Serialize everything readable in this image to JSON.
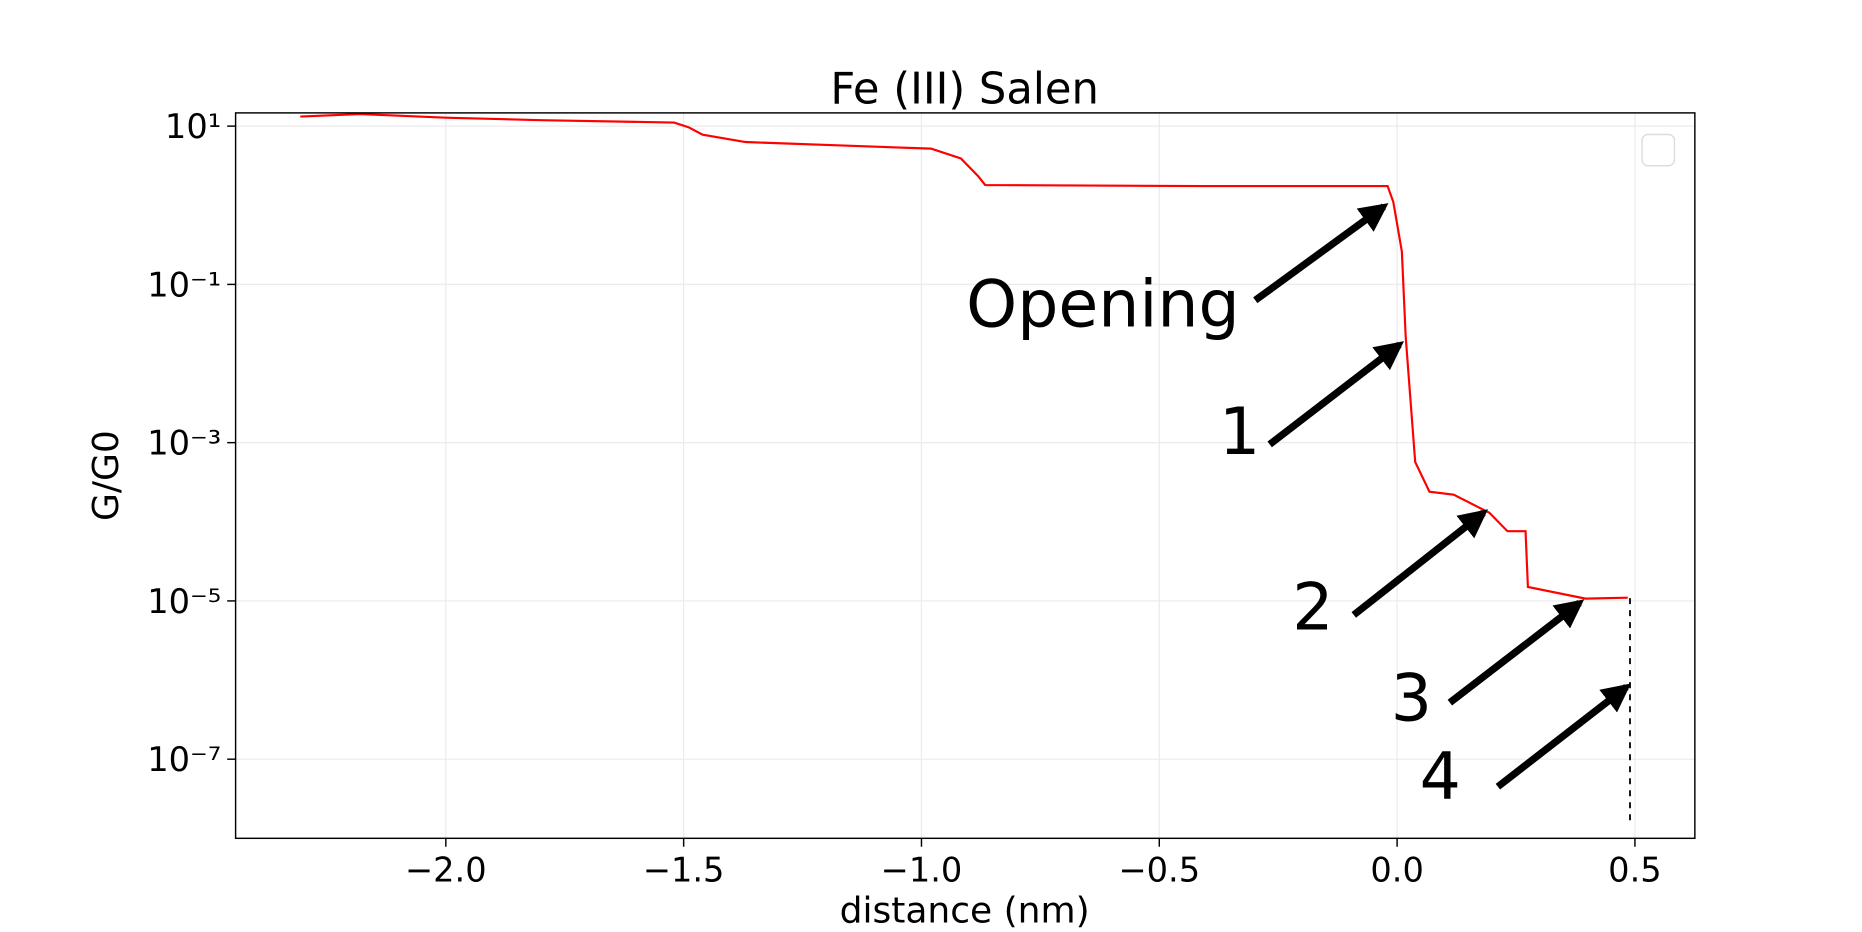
{
  "chart_data": {
    "type": "line",
    "title": "Fe (III) Salen",
    "x_label": "distance (nm)",
    "y_label": "G/G0",
    "log_y": true,
    "grid": true,
    "xlim": [
      -2.442,
      0.626
    ],
    "ylim": [
      1e-08,
      14.7
    ],
    "xticks": [
      {
        "value": -2,
        "label": "−2.0"
      },
      {
        "value": -1.5,
        "label": "−1.5"
      },
      {
        "value": -1,
        "label": "−1.0"
      },
      {
        "value": -0.5,
        "label": "−0.5"
      },
      {
        "value": 0,
        "label": "0.0"
      },
      {
        "value": 0.5,
        "label": "0.5"
      }
    ],
    "yticks": [
      {
        "value": 10,
        "label": "10¹"
      },
      {
        "value": 0.1,
        "label": "10⁻¹"
      },
      {
        "value": 0.001,
        "label": "10⁻³"
      },
      {
        "value": 1e-05,
        "label": "10⁻⁵"
      },
      {
        "value": 1e-07,
        "label": "10⁻⁷"
      }
    ],
    "series": [
      {
        "color": "#ff0000",
        "x": [
          -2.306,
          -2.18,
          -2.0,
          -1.8,
          -1.52,
          -1.49,
          -1.46,
          -1.37,
          -1.17,
          -0.98,
          -0.917,
          -0.88,
          -0.866,
          -0.41,
          -0.02,
          -0.008,
          0.01,
          0.018,
          0.038,
          0.068,
          0.119,
          0.194,
          0.232,
          0.27,
          0.275,
          0.396,
          0.485
        ],
        "values": [
          13.2,
          14.2,
          12.8,
          11.9,
          11.1,
          9.7,
          7.8,
          6.3,
          5.7,
          5.2,
          3.9,
          2.3,
          1.8,
          1.75,
          1.75,
          1.1,
          0.26,
          0.022,
          0.00057,
          0.00024,
          0.00022,
          0.00013,
          7.6e-05,
          7.6e-05,
          1.5e-05,
          1.07e-05,
          1.1e-05
        ]
      }
    ],
    "annotations": [
      "Opening",
      "1",
      "2",
      "3",
      "4"
    ]
  }
}
